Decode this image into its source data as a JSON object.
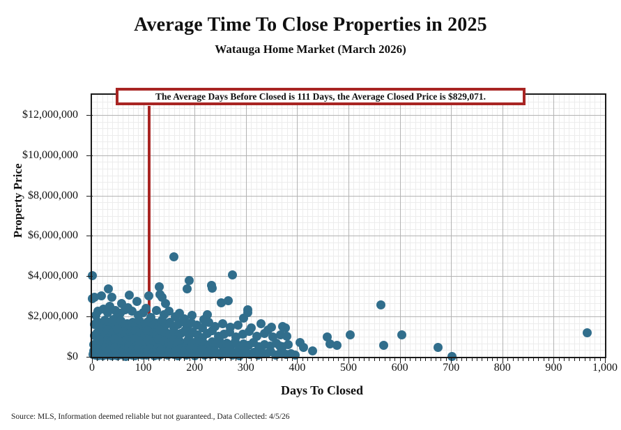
{
  "source_note": "Source: MLS, Information deemed reliable but not guaranteed., Data Collected: 4/5/26",
  "colors": {
    "point": "#316e8c",
    "annotation_red": "#a82523",
    "grid_major": "#b3b3b3",
    "grid_minor": "#ececec",
    "axis": "#1a1a1a",
    "background": "#ffffff"
  },
  "chart_data": {
    "type": "scatter",
    "title": "Average Time To Close Properties in 2025",
    "subtitle": "Watauga Home Market (March 2026)",
    "xlabel": "Days To Closed",
    "ylabel": "Property Price",
    "xlim": [
      0,
      1000
    ],
    "ylim": [
      0,
      13000000
    ],
    "x_major_step": 100,
    "x_minor_step": 10,
    "y_major_step": 2000000,
    "y_minor_divisions": 6,
    "x_tick_labels": [
      "0",
      "100",
      "200",
      "300",
      "400",
      "500",
      "600",
      "700",
      "800",
      "900",
      "1,000"
    ],
    "y_tick_labels": [
      "$0",
      "$2,000,000",
      "$4,000,000",
      "$6,000,000",
      "$8,000,000",
      "$10,000,000",
      "$12,000,000"
    ],
    "grid": "on",
    "legend": "none",
    "annotation": "The Average Days Before Closed is 111 Days, the Average Closed Price is $829,071.",
    "mean_days": 111,
    "mean_price": 829071,
    "points": [
      [
        0,
        4020000
      ],
      [
        159,
        4950000
      ],
      [
        274,
        4060000
      ],
      [
        233,
        3550000
      ],
      [
        235,
        3400000
      ],
      [
        190,
        3790000
      ],
      [
        186,
        3380000
      ],
      [
        32,
        3380000
      ],
      [
        131,
        3480000
      ],
      [
        111,
        3030000
      ],
      [
        73,
        3070000
      ],
      [
        136,
        2970000
      ],
      [
        39,
        2970000
      ],
      [
        18,
        3030000
      ],
      [
        5,
        2970000
      ],
      [
        0,
        2880000
      ],
      [
        58,
        2640000
      ],
      [
        88,
        2750000
      ],
      [
        144,
        2640000
      ],
      [
        133,
        3100000
      ],
      [
        252,
        2690000
      ],
      [
        266,
        2790000
      ],
      [
        304,
        2340000
      ],
      [
        295,
        1930000
      ],
      [
        225,
        2100000
      ],
      [
        218,
        1860000
      ],
      [
        303,
        2200000
      ],
      [
        563,
        2560000
      ],
      [
        569,
        560000
      ],
      [
        604,
        1080000
      ],
      [
        675,
        480000
      ],
      [
        702,
        30000
      ],
      [
        965,
        1180000
      ],
      [
        406,
        720000
      ],
      [
        412,
        480000
      ],
      [
        430,
        280000
      ],
      [
        458,
        970000
      ],
      [
        464,
        630000
      ],
      [
        477,
        560000
      ],
      [
        504,
        1080000
      ],
      [
        372,
        1520000
      ],
      [
        377,
        1430000
      ],
      [
        366,
        550000
      ],
      [
        12,
        2250000
      ],
      [
        22,
        2380000
      ],
      [
        30,
        2200000
      ],
      [
        45,
        2300000
      ],
      [
        55,
        2150000
      ],
      [
        65,
        2350000
      ],
      [
        78,
        2250000
      ],
      [
        90,
        2050000
      ],
      [
        100,
        2200000
      ],
      [
        115,
        1950000
      ],
      [
        125,
        2300000
      ],
      [
        140,
        2100000
      ],
      [
        150,
        2250000
      ],
      [
        162,
        2000000
      ],
      [
        170,
        2150000
      ],
      [
        180,
        1900000
      ],
      [
        195,
        2050000
      ],
      [
        35,
        2500000
      ],
      [
        70,
        2450000
      ],
      [
        105,
        2400000
      ],
      [
        48,
        1950000
      ],
      [
        8,
        2050000
      ],
      [
        5,
        1600000
      ],
      [
        10,
        1750000
      ],
      [
        15,
        1500000
      ],
      [
        20,
        1680000
      ],
      [
        25,
        1820000
      ],
      [
        28,
        1450000
      ],
      [
        33,
        1700000
      ],
      [
        38,
        1550000
      ],
      [
        42,
        1850000
      ],
      [
        47,
        1620000
      ],
      [
        52,
        1480000
      ],
      [
        57,
        1780000
      ],
      [
        62,
        1520000
      ],
      [
        68,
        1650000
      ],
      [
        74,
        1430000
      ],
      [
        80,
        1720000
      ],
      [
        85,
        1580000
      ],
      [
        92,
        1830000
      ],
      [
        98,
        1490000
      ],
      [
        104,
        1640000
      ],
      [
        110,
        1760000
      ],
      [
        118,
        1540000
      ],
      [
        124,
        1680000
      ],
      [
        130,
        1470000
      ],
      [
        137,
        1800000
      ],
      [
        143,
        1560000
      ],
      [
        152,
        1700000
      ],
      [
        160,
        1440000
      ],
      [
        168,
        1620000
      ],
      [
        176,
        1750000
      ],
      [
        185,
        1500000
      ],
      [
        193,
        1660000
      ],
      [
        205,
        1570000
      ],
      [
        215,
        1450000
      ],
      [
        228,
        1700000
      ],
      [
        240,
        1520000
      ],
      [
        255,
        1640000
      ],
      [
        270,
        1480000
      ],
      [
        285,
        1560000
      ],
      [
        310,
        1420000
      ],
      [
        330,
        1650000
      ],
      [
        350,
        1460000
      ],
      [
        5,
        1050000
      ],
      [
        10,
        1180000
      ],
      [
        15,
        980000
      ],
      [
        20,
        1250000
      ],
      [
        25,
        1100000
      ],
      [
        30,
        1320000
      ],
      [
        35,
        960000
      ],
      [
        40,
        1200000
      ],
      [
        45,
        1060000
      ],
      [
        50,
        1350000
      ],
      [
        55,
        1000000
      ],
      [
        60,
        1270000
      ],
      [
        65,
        1130000
      ],
      [
        70,
        940000
      ],
      [
        75,
        1220000
      ],
      [
        80,
        1080000
      ],
      [
        85,
        1300000
      ],
      [
        90,
        990000
      ],
      [
        96,
        1160000
      ],
      [
        102,
        1060000
      ],
      [
        108,
        1280000
      ],
      [
        114,
        950000
      ],
      [
        120,
        1210000
      ],
      [
        126,
        1120000
      ],
      [
        132,
        1340000
      ],
      [
        138,
        1010000
      ],
      [
        145,
        1190000
      ],
      [
        152,
        1080000
      ],
      [
        159,
        1260000
      ],
      [
        166,
        970000
      ],
      [
        173,
        1150000
      ],
      [
        181,
        1310000
      ],
      [
        189,
        1040000
      ],
      [
        197,
        1230000
      ],
      [
        206,
        1090000
      ],
      [
        215,
        960000
      ],
      [
        225,
        1170000
      ],
      [
        235,
        1280000
      ],
      [
        246,
        1020000
      ],
      [
        257,
        1140000
      ],
      [
        269,
        1240000
      ],
      [
        281,
        980000
      ],
      [
        294,
        1120000
      ],
      [
        307,
        1260000
      ],
      [
        321,
        1030000
      ],
      [
        336,
        1150000
      ],
      [
        352,
        970000
      ],
      [
        368,
        1090000
      ],
      [
        380,
        1010000
      ],
      [
        343,
        1330000
      ],
      [
        3,
        620000
      ],
      [
        7,
        540000
      ],
      [
        12,
        760000
      ],
      [
        16,
        480000
      ],
      [
        20,
        690000
      ],
      [
        24,
        580000
      ],
      [
        28,
        820000
      ],
      [
        32,
        500000
      ],
      [
        36,
        730000
      ],
      [
        40,
        640000
      ],
      [
        44,
        870000
      ],
      [
        48,
        550000
      ],
      [
        52,
        780000
      ],
      [
        56,
        470000
      ],
      [
        60,
        700000
      ],
      [
        64,
        600000
      ],
      [
        68,
        850000
      ],
      [
        72,
        520000
      ],
      [
        76,
        740000
      ],
      [
        80,
        660000
      ],
      [
        84,
        890000
      ],
      [
        88,
        570000
      ],
      [
        92,
        800000
      ],
      [
        96,
        490000
      ],
      [
        100,
        710000
      ],
      [
        105,
        610000
      ],
      [
        110,
        840000
      ],
      [
        115,
        530000
      ],
      [
        120,
        750000
      ],
      [
        125,
        670000
      ],
      [
        130,
        880000
      ],
      [
        135,
        560000
      ],
      [
        140,
        790000
      ],
      [
        145,
        480000
      ],
      [
        150,
        720000
      ],
      [
        155,
        630000
      ],
      [
        160,
        860000
      ],
      [
        165,
        540000
      ],
      [
        170,
        770000
      ],
      [
        175,
        650000
      ],
      [
        181,
        500000
      ],
      [
        187,
        820000
      ],
      [
        193,
        590000
      ],
      [
        199,
        700000
      ],
      [
        206,
        470000
      ],
      [
        213,
        780000
      ],
      [
        220,
        640000
      ],
      [
        227,
        550000
      ],
      [
        234,
        730000
      ],
      [
        241,
        610000
      ],
      [
        248,
        830000
      ],
      [
        255,
        520000
      ],
      [
        263,
        690000
      ],
      [
        271,
        580000
      ],
      [
        279,
        760000
      ],
      [
        287,
        470000
      ],
      [
        296,
        650000
      ],
      [
        305,
        560000
      ],
      [
        315,
        720000
      ],
      [
        325,
        490000
      ],
      [
        336,
        620000
      ],
      [
        347,
        540000
      ],
      [
        359,
        680000
      ],
      [
        371,
        510000
      ],
      [
        383,
        590000
      ],
      [
        14,
        860000
      ],
      [
        47,
        460000
      ],
      [
        93,
        680000
      ],
      [
        129,
        460000
      ],
      [
        167,
        700000
      ],
      [
        2,
        120000
      ],
      [
        4,
        300000
      ],
      [
        6,
        80000
      ],
      [
        8,
        210000
      ],
      [
        9,
        400000
      ],
      [
        11,
        60000
      ],
      [
        13,
        270000
      ],
      [
        14,
        150000
      ],
      [
        16,
        350000
      ],
      [
        17,
        90000
      ],
      [
        19,
        230000
      ],
      [
        21,
        40000
      ],
      [
        23,
        310000
      ],
      [
        24,
        180000
      ],
      [
        26,
        420000
      ],
      [
        27,
        110000
      ],
      [
        29,
        260000
      ],
      [
        31,
        70000
      ],
      [
        33,
        340000
      ],
      [
        34,
        200000
      ],
      [
        36,
        130000
      ],
      [
        38,
        390000
      ],
      [
        39,
        50000
      ],
      [
        41,
        280000
      ],
      [
        43,
        160000
      ],
      [
        44,
        430000
      ],
      [
        46,
        100000
      ],
      [
        48,
        240000
      ],
      [
        50,
        60000
      ],
      [
        52,
        330000
      ],
      [
        54,
        190000
      ],
      [
        55,
        410000
      ],
      [
        57,
        140000
      ],
      [
        59,
        290000
      ],
      [
        61,
        80000
      ],
      [
        63,
        370000
      ],
      [
        65,
        220000
      ],
      [
        66,
        30000
      ],
      [
        68,
        310000
      ],
      [
        70,
        170000
      ],
      [
        72,
        440000
      ],
      [
        74,
        120000
      ],
      [
        76,
        260000
      ],
      [
        78,
        90000
      ],
      [
        80,
        350000
      ],
      [
        82,
        200000
      ],
      [
        84,
        60000
      ],
      [
        86,
        300000
      ],
      [
        88,
        160000
      ],
      [
        90,
        420000
      ],
      [
        92,
        110000
      ],
      [
        95,
        250000
      ],
      [
        97,
        380000
      ],
      [
        99,
        70000
      ],
      [
        102,
        320000
      ],
      [
        104,
        180000
      ],
      [
        107,
        90000
      ],
      [
        110,
        270000
      ],
      [
        113,
        400000
      ],
      [
        116,
        140000
      ],
      [
        119,
        230000
      ],
      [
        122,
        50000
      ],
      [
        125,
        330000
      ],
      [
        128,
        190000
      ],
      [
        131,
        100000
      ],
      [
        134,
        290000
      ],
      [
        137,
        370000
      ],
      [
        140,
        150000
      ],
      [
        144,
        250000
      ],
      [
        148,
        80000
      ],
      [
        152,
        340000
      ],
      [
        156,
        200000
      ],
      [
        160,
        120000
      ],
      [
        164,
        280000
      ],
      [
        168,
        60000
      ],
      [
        172,
        390000
      ],
      [
        176,
        170000
      ],
      [
        180,
        310000
      ],
      [
        184,
        100000
      ],
      [
        188,
        240000
      ],
      [
        192,
        420000
      ],
      [
        196,
        140000
      ],
      [
        200,
        60000
      ],
      [
        205,
        290000
      ],
      [
        210,
        180000
      ],
      [
        215,
        350000
      ],
      [
        220,
        90000
      ],
      [
        226,
        230000
      ],
      [
        232,
        130000
      ],
      [
        238,
        310000
      ],
      [
        244,
        200000
      ],
      [
        250,
        70000
      ],
      [
        256,
        270000
      ],
      [
        262,
        150000
      ],
      [
        268,
        380000
      ],
      [
        274,
        100000
      ],
      [
        280,
        220000
      ],
      [
        287,
        50000
      ],
      [
        294,
        170000
      ],
      [
        300,
        300000
      ],
      [
        308,
        120000
      ],
      [
        316,
        240000
      ],
      [
        324,
        80000
      ],
      [
        332,
        190000
      ],
      [
        340,
        140000
      ],
      [
        349,
        260000
      ],
      [
        358,
        90000
      ],
      [
        368,
        200000
      ],
      [
        378,
        130000
      ],
      [
        388,
        170000
      ],
      [
        396,
        100000
      ]
    ]
  }
}
